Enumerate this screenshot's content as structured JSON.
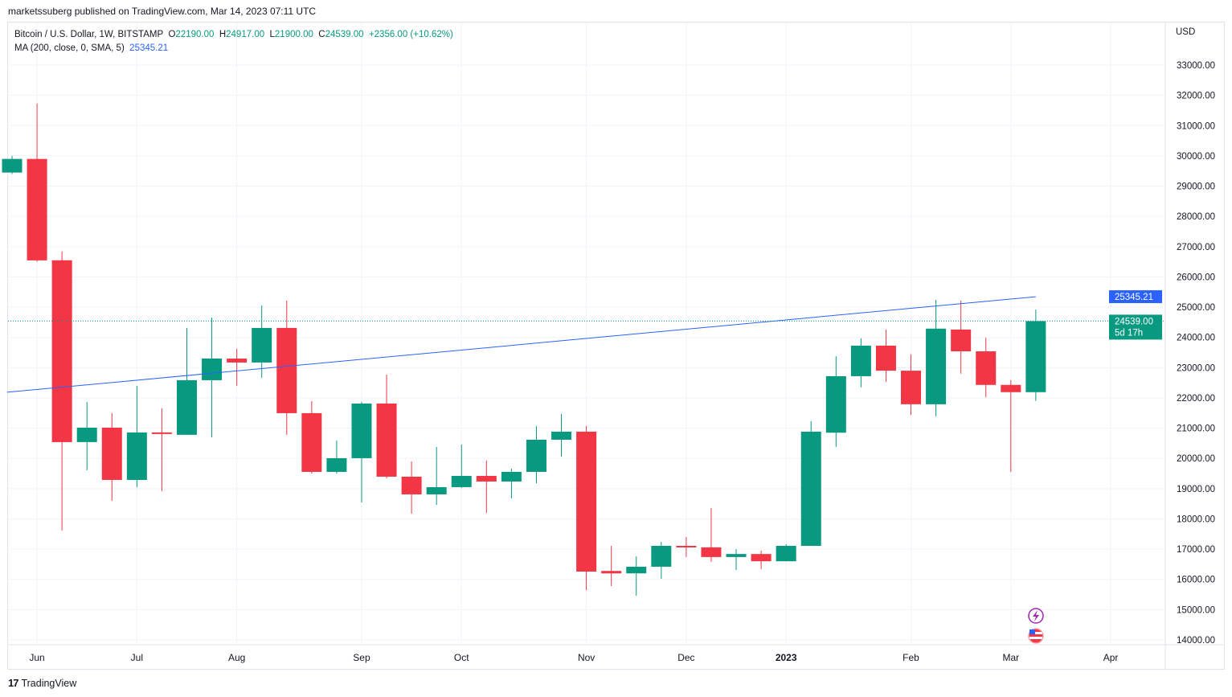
{
  "publisher_line": "marketssuberg published on TradingView.com, Mar 14, 2023 07:11 UTC",
  "legend": {
    "symbol": "Bitcoin / U.S. Dollar, 1W, BITSTAMP",
    "o_label": "O",
    "o": "22190.00",
    "h_label": "H",
    "h": "24917.00",
    "l_label": "L",
    "l": "21900.00",
    "c_label": "C",
    "c": "24539.00",
    "change": "+2356.00 (+10.62%)",
    "ma_label": "MA (200, close, 0, SMA, 5)",
    "ma_value": "25345.21"
  },
  "currency": "USD",
  "footer_brand": "TradingView",
  "price_tags": {
    "ma": "25345.21",
    "last": "24539.00",
    "countdown": "5d 17h"
  },
  "colors": {
    "up": "#089981",
    "down": "#f23645",
    "ma": "#2962ff",
    "grid": "#f0f3fa"
  },
  "chart_data": {
    "type": "candlestick",
    "title": "Bitcoin / U.S. Dollar, 1W, BITSTAMP",
    "ylabel": "USD",
    "ylim": [
      13500,
      33500
    ],
    "yticks": [
      14000,
      15000,
      16000,
      17000,
      18000,
      19000,
      20000,
      21000,
      22000,
      23000,
      24000,
      25000,
      26000,
      27000,
      28000,
      29000,
      30000,
      31000,
      32000,
      33000
    ],
    "ytick_labels": [
      "14000.00",
      "15000.00",
      "16000.00",
      "17000.00",
      "18000.00",
      "19000.00",
      "20000.00",
      "21000.00",
      "22000.00",
      "23000.00",
      "24000.00",
      "25000.00",
      "26000.00",
      "27000.00",
      "28000.00",
      "29000.00",
      "30000.00",
      "31000.00",
      "32000.00",
      "33000.00"
    ],
    "xticks": [
      {
        "label": "Jun",
        "index": 1
      },
      {
        "label": "Jul",
        "index": 5
      },
      {
        "label": "Aug",
        "index": 9
      },
      {
        "label": "Sep",
        "index": 14
      },
      {
        "label": "Oct",
        "index": 18
      },
      {
        "label": "Nov",
        "index": 23
      },
      {
        "label": "Dec",
        "index": 27
      },
      {
        "label": "2023",
        "index": 31,
        "bold": true
      },
      {
        "label": "Feb",
        "index": 36
      },
      {
        "label": "Mar",
        "index": 40
      },
      {
        "label": "Apr",
        "index": 44
      }
    ],
    "ohlc": [
      [
        29450,
        30000,
        29400,
        29900
      ],
      [
        29900,
        31729,
        26500,
        26546
      ],
      [
        26550,
        26838,
        17615,
        20539
      ],
      [
        20540,
        21868,
        19608,
        21017
      ],
      [
        21017,
        21496,
        18598,
        19289
      ],
      [
        19289,
        22400,
        19050,
        20858
      ],
      [
        20860,
        21655,
        18917,
        20830
      ],
      [
        20780,
        24313,
        20780,
        22585
      ],
      [
        22585,
        24658,
        20700,
        23303
      ],
      [
        23300,
        23620,
        22400,
        23170
      ],
      [
        23170,
        25057,
        22665,
        24313
      ],
      [
        24313,
        25217,
        20780,
        21496
      ],
      [
        21496,
        21894,
        19500,
        19555
      ],
      [
        19555,
        20592,
        19500,
        20007
      ],
      [
        20007,
        21870,
        18545,
        21815
      ],
      [
        21815,
        22771,
        19340,
        19396
      ],
      [
        19396,
        19900,
        18173,
        18811
      ],
      [
        18811,
        20380,
        18465,
        19050
      ],
      [
        19050,
        20460,
        19020,
        19422
      ],
      [
        19422,
        19930,
        18200,
        19236
      ],
      [
        19236,
        19660,
        18680,
        19555
      ],
      [
        19555,
        21070,
        19180,
        20618
      ],
      [
        20618,
        21470,
        20060,
        20884
      ],
      [
        20884,
        21070,
        15648,
        16259
      ],
      [
        16280,
        17110,
        15780,
        16200
      ],
      [
        16200,
        16760,
        15460,
        16420
      ],
      [
        16420,
        17240,
        16020,
        17110
      ],
      [
        17110,
        17400,
        16740,
        17060
      ],
      [
        17060,
        18360,
        16580,
        16740
      ],
      [
        16740,
        17000,
        16310,
        16840
      ],
      [
        16840,
        16950,
        16340,
        16600
      ],
      [
        16600,
        17160,
        16600,
        17110
      ],
      [
        17110,
        21230,
        17110,
        20884
      ],
      [
        20850,
        23380,
        20380,
        22718
      ],
      [
        22718,
        23970,
        22350,
        23728
      ],
      [
        23728,
        24260,
        22530,
        22900
      ],
      [
        22900,
        23440,
        21440,
        21790
      ],
      [
        21790,
        25240,
        21390,
        24290
      ],
      [
        24260,
        25220,
        22800,
        23540
      ],
      [
        23540,
        23990,
        22030,
        22430
      ],
      [
        22430,
        22590,
        19555,
        22190
      ],
      [
        22190,
        24917,
        21900,
        24539
      ]
    ],
    "ma_series": {
      "name": "MA (200, close, 0, SMA, 5)",
      "points": [
        [
          -0.2,
          22187
        ],
        [
          41,
          25345.21
        ]
      ]
    },
    "last_price": 24539
  }
}
